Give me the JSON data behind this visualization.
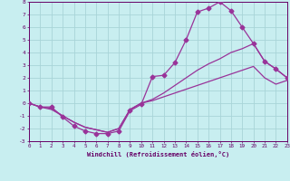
{
  "xlabel": "Windchill (Refroidissement éolien,°C)",
  "bg_color": "#c8eef0",
  "grid_color": "#a8d4d8",
  "line_color": "#993399",
  "xlim": [
    0,
    23
  ],
  "ylim": [
    -3,
    8
  ],
  "xticks": [
    0,
    1,
    2,
    3,
    4,
    5,
    6,
    7,
    8,
    9,
    10,
    11,
    12,
    13,
    14,
    15,
    16,
    17,
    18,
    19,
    20,
    21,
    22,
    23
  ],
  "yticks": [
    -3,
    -2,
    -1,
    0,
    1,
    2,
    3,
    4,
    5,
    6,
    7,
    8
  ],
  "curve1_x": [
    0,
    1,
    2,
    3,
    4,
    5,
    6,
    7,
    8,
    9,
    10,
    11,
    12,
    13,
    14,
    15,
    16,
    17,
    18,
    19,
    20,
    21,
    22,
    23
  ],
  "curve1_y": [
    0.0,
    -0.3,
    -0.3,
    -1.1,
    -1.8,
    -2.2,
    -2.4,
    -2.4,
    -2.2,
    -0.6,
    -0.1,
    2.1,
    2.2,
    3.2,
    5.0,
    7.2,
    7.5,
    8.0,
    7.3,
    6.0,
    4.7,
    3.3,
    2.7,
    2.0
  ],
  "curve2_x": [
    0,
    1,
    2,
    3,
    4,
    5,
    6,
    7,
    8,
    9,
    10,
    11,
    12,
    13,
    14,
    15,
    16,
    17,
    18,
    19,
    20,
    21,
    22,
    23
  ],
  "curve2_y": [
    0.0,
    -0.3,
    -0.5,
    -1.0,
    -1.5,
    -1.9,
    -2.1,
    -2.3,
    -2.0,
    -0.5,
    0.0,
    0.2,
    0.5,
    0.8,
    1.1,
    1.4,
    1.7,
    2.0,
    2.3,
    2.6,
    2.9,
    2.0,
    1.5,
    1.8
  ],
  "curve3_x": [
    0,
    1,
    2,
    3,
    4,
    5,
    6,
    7,
    8,
    9,
    10,
    11,
    12,
    13,
    14,
    15,
    16,
    17,
    18,
    19,
    20,
    21,
    22,
    23
  ],
  "curve3_y": [
    0.0,
    -0.3,
    -0.4,
    -1.0,
    -1.5,
    -1.9,
    -2.1,
    -2.3,
    -2.0,
    -0.5,
    0.0,
    0.3,
    0.8,
    1.4,
    2.0,
    2.6,
    3.1,
    3.5,
    4.0,
    4.3,
    4.7,
    3.3,
    2.7,
    2.0
  ]
}
